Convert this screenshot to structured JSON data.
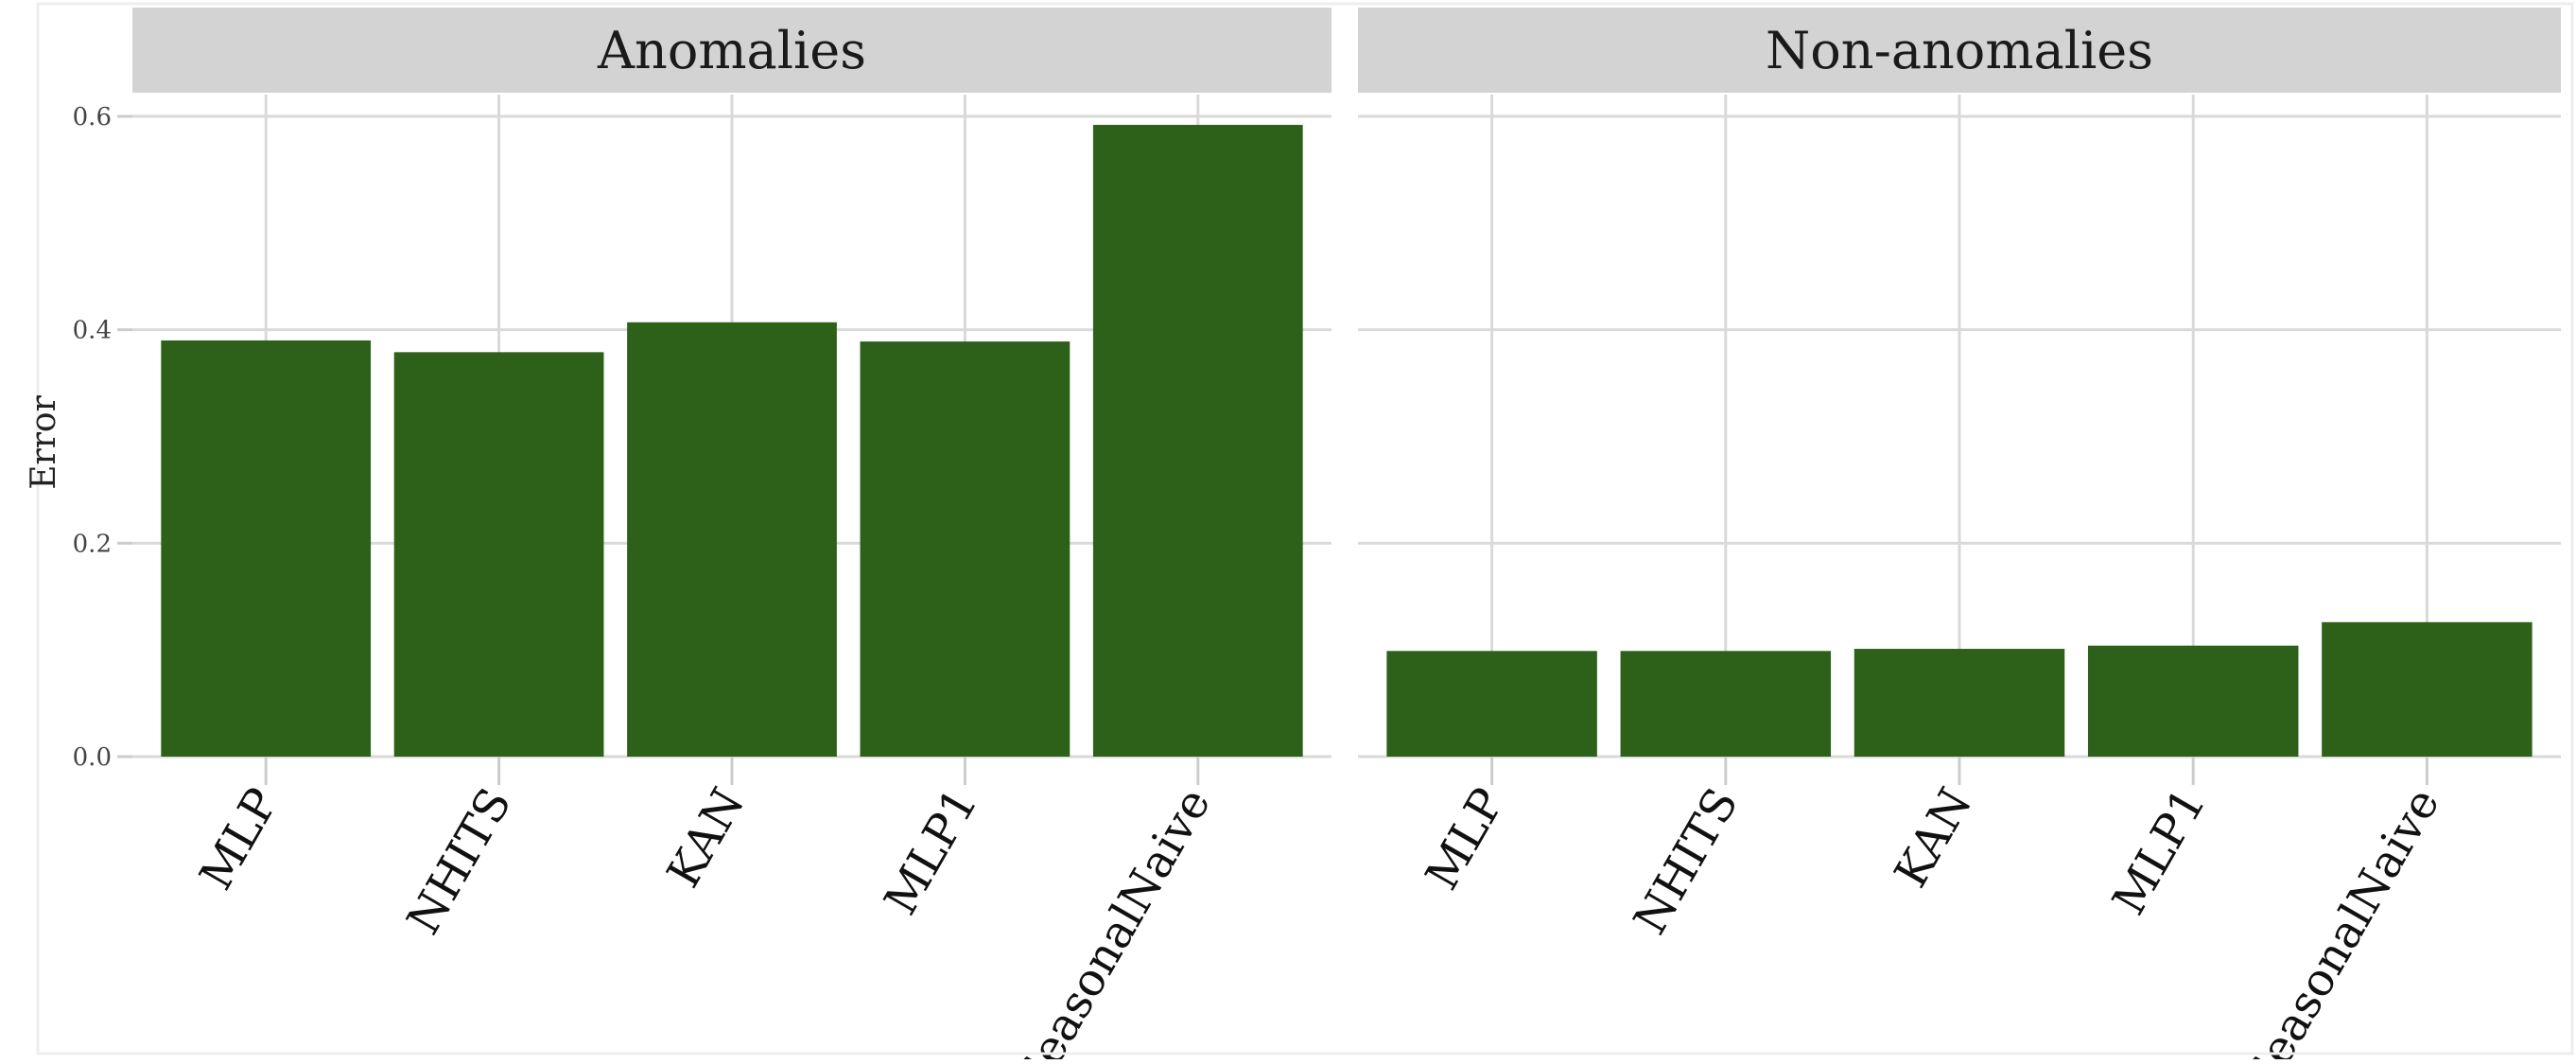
{
  "chart_data": {
    "type": "bar",
    "ylabel": "Error",
    "ylim": [
      0,
      0.6
    ],
    "yticks": [
      "0.0",
      "0.2",
      "0.4",
      "0.6"
    ],
    "bar_color": "#2d6119",
    "grid": true,
    "categories": [
      "MLP",
      "NHITS",
      "KAN",
      "MLP1",
      "SeasonalNaive"
    ],
    "panels": [
      {
        "title": "Anomalies",
        "values": [
          0.39,
          0.379,
          0.407,
          0.389,
          0.592
        ]
      },
      {
        "title": "Non-anomalies",
        "values": [
          0.099,
          0.099,
          0.101,
          0.104,
          0.126
        ]
      }
    ]
  }
}
